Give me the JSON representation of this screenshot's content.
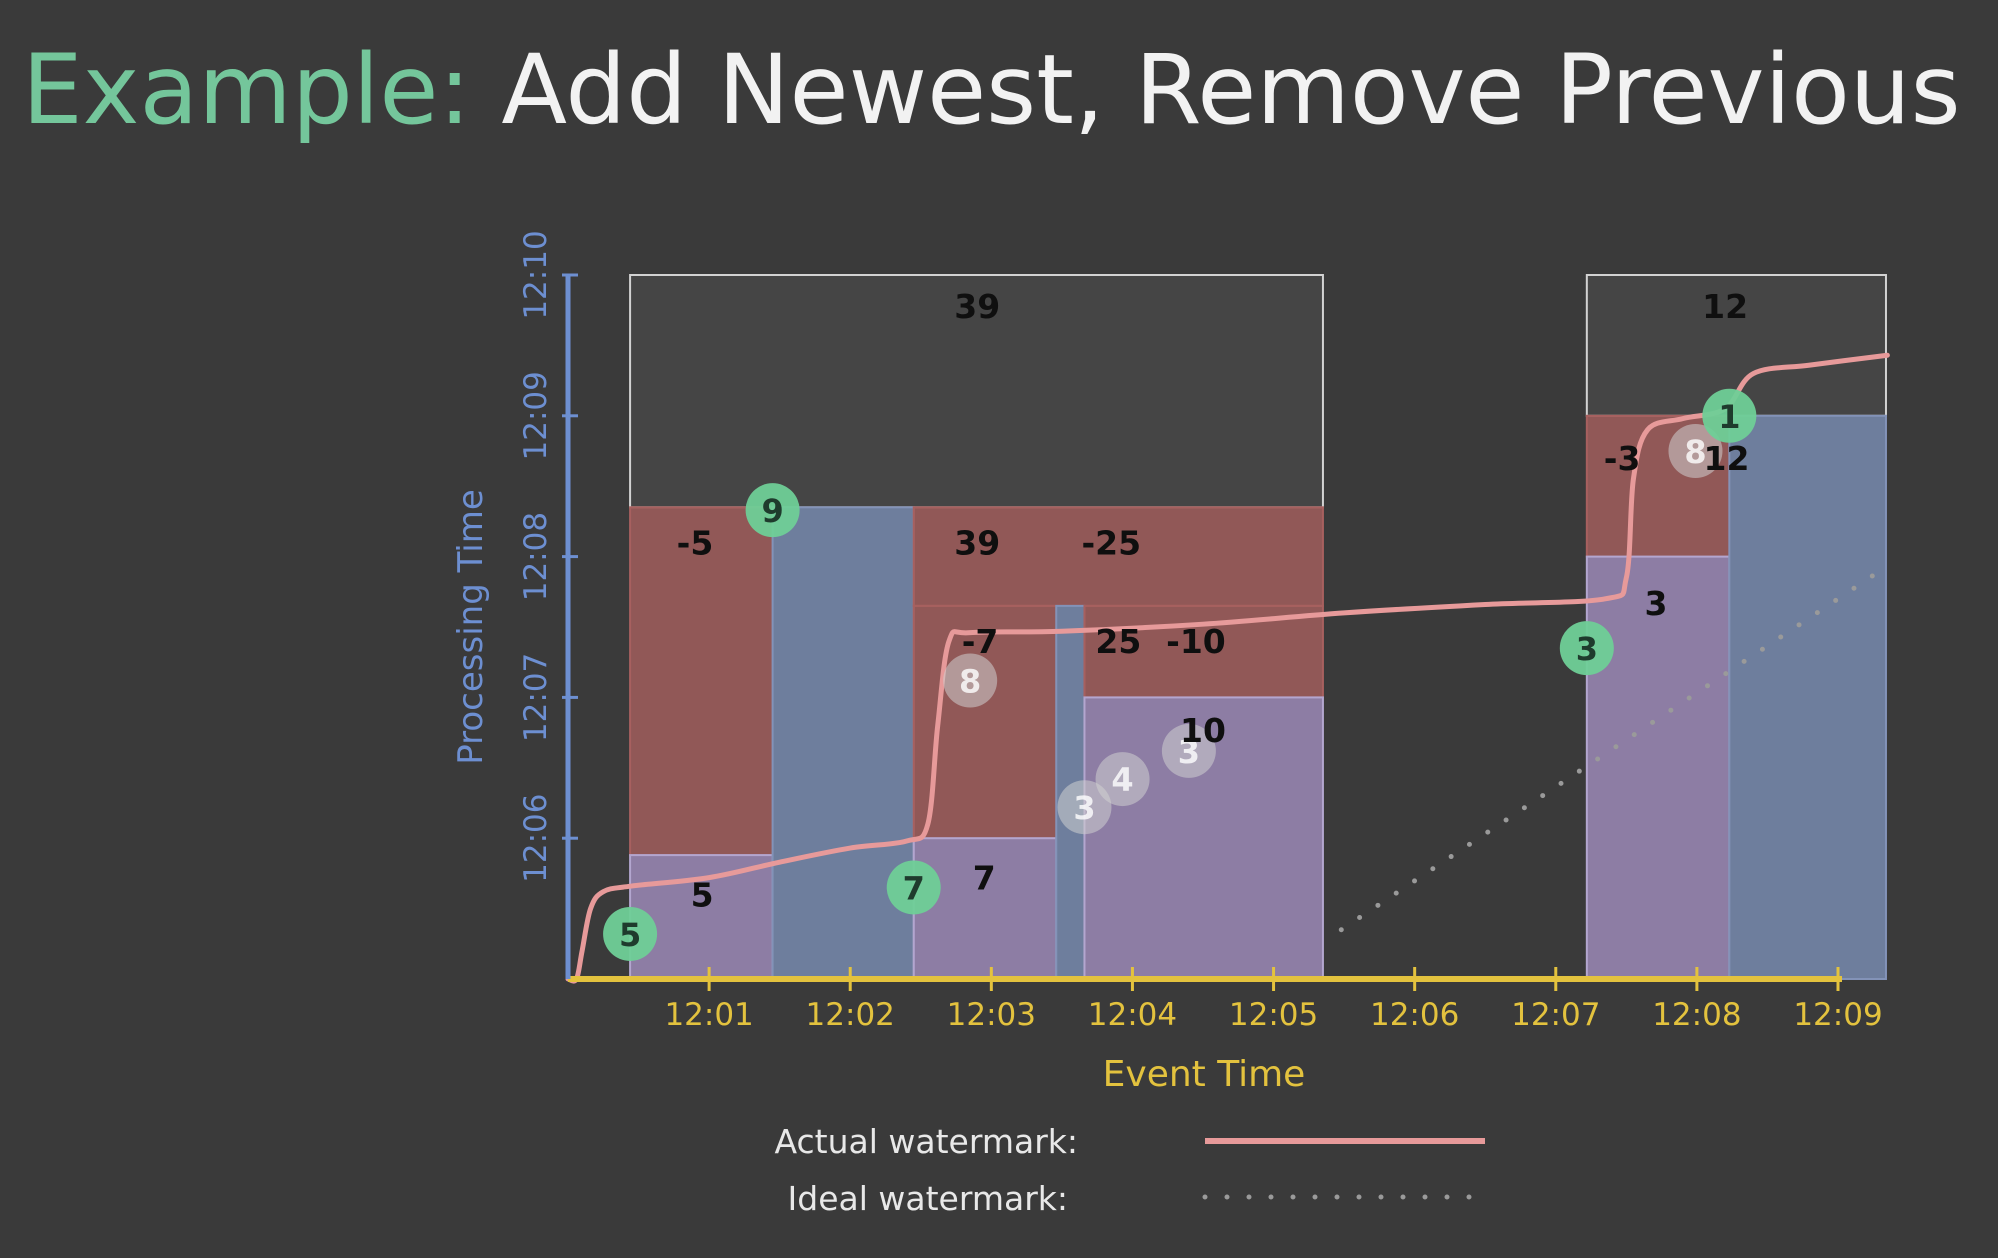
{
  "slide": {
    "title_lead": "Example:",
    "title_rest": "Add Newest, Remove Previous"
  },
  "chart_data": {
    "type": "timeline-diagram",
    "xlabel": "Event Time",
    "ylabel": "Processing Time",
    "x_ticks": [
      "12:01",
      "12:02",
      "12:03",
      "12:04",
      "12:05",
      "12:06",
      "12:07",
      "12:08",
      "12:09"
    ],
    "y_ticks": [
      "12:06",
      "12:07",
      "12:08",
      "12:09",
      "12:10"
    ],
    "xlim": [
      12.0,
      21.0
    ],
    "ylim": [
      5.0,
      10.0
    ],
    "colors": {
      "axis_x": "#e3c23e",
      "axis_y": "#6d8fd1",
      "watermark": "#e79a9a",
      "ideal": "#9a9a9a",
      "pane_added": "#9c8ab7",
      "pane_retracted": "#a7605f",
      "pane_blue": "#6e7e9d",
      "pane_final": "#454545",
      "input_green": "#6fcf97",
      "input_grey": "#cfcfcf"
    },
    "panes": [
      {
        "x0": 12.44,
        "x1": 17.35,
        "y0": 8.35,
        "y1": 10.0,
        "kind": "final"
      },
      {
        "x0": 12.44,
        "x1": 13.45,
        "y0": 5.88,
        "y1": 8.35,
        "kind": "retracted"
      },
      {
        "x0": 12.44,
        "x1": 13.45,
        "y0": 5.0,
        "y1": 5.88,
        "kind": "added"
      },
      {
        "x0": 13.45,
        "x1": 14.45,
        "y0": 5.0,
        "y1": 8.35,
        "kind": "blue"
      },
      {
        "x0": 14.45,
        "x1": 17.35,
        "y0": 7.65,
        "y1": 8.35,
        "kind": "retracted"
      },
      {
        "x0": 14.45,
        "x1": 15.46,
        "y0": 6.0,
        "y1": 7.65,
        "kind": "retracted"
      },
      {
        "x0": 14.45,
        "x1": 15.46,
        "y0": 5.0,
        "y1": 6.0,
        "kind": "added"
      },
      {
        "x0": 15.46,
        "x1": 15.66,
        "y0": 5.0,
        "y1": 7.65,
        "kind": "blue"
      },
      {
        "x0": 15.66,
        "x1": 17.35,
        "y0": 7.0,
        "y1": 7.65,
        "kind": "retracted"
      },
      {
        "x0": 15.66,
        "x1": 17.35,
        "y0": 5.0,
        "y1": 7.0,
        "kind": "added"
      },
      {
        "x0": 19.22,
        "x1": 21.34,
        "y0": 9.0,
        "y1": 10.0,
        "kind": "final"
      },
      {
        "x0": 19.22,
        "x1": 20.23,
        "y0": 8.0,
        "y1": 9.0,
        "kind": "retracted"
      },
      {
        "x0": 19.22,
        "x1": 20.23,
        "y0": 5.0,
        "y1": 8.0,
        "kind": "added"
      },
      {
        "x0": 20.23,
        "x1": 21.34,
        "y0": 5.0,
        "y1": 9.0,
        "kind": "blue"
      }
    ],
    "watermark": {
      "name": "Actual watermark",
      "points": [
        [
          12.0,
          5.0
        ],
        [
          12.06,
          5.0
        ],
        [
          12.1,
          5.2
        ],
        [
          12.16,
          5.5
        ],
        [
          12.25,
          5.62
        ],
        [
          12.45,
          5.66
        ],
        [
          13.0,
          5.72
        ],
        [
          13.5,
          5.83
        ],
        [
          14.0,
          5.93
        ],
        [
          14.4,
          5.98
        ],
        [
          14.55,
          6.1
        ],
        [
          14.62,
          6.8
        ],
        [
          14.7,
          7.4
        ],
        [
          14.85,
          7.46
        ],
        [
          15.5,
          7.47
        ],
        [
          16.5,
          7.52
        ],
        [
          17.5,
          7.6
        ],
        [
          18.5,
          7.66
        ],
        [
          19.35,
          7.7
        ],
        [
          19.5,
          7.85
        ],
        [
          19.55,
          8.55
        ],
        [
          19.65,
          8.9
        ],
        [
          19.9,
          8.98
        ],
        [
          20.2,
          9.05
        ],
        [
          20.4,
          9.3
        ],
        [
          20.8,
          9.36
        ],
        [
          21.35,
          9.43
        ]
      ]
    },
    "ideal_watermark": {
      "name": "Ideal watermark",
      "points": [
        [
          17.48,
          5.35
        ],
        [
          21.3,
          7.9
        ]
      ]
    },
    "inputs": [
      {
        "value": "5",
        "x": 12.44,
        "y": 5.32,
        "state": "on_time"
      },
      {
        "value": "9",
        "x": 13.45,
        "y": 8.33,
        "state": "on_time"
      },
      {
        "value": "7",
        "x": 14.45,
        "y": 5.65,
        "state": "on_time"
      },
      {
        "value": "8",
        "x": 14.85,
        "y": 7.12,
        "state": "late"
      },
      {
        "value": "3",
        "x": 15.66,
        "y": 6.22,
        "state": "late"
      },
      {
        "value": "4",
        "x": 15.93,
        "y": 6.42,
        "state": "late"
      },
      {
        "value": "3",
        "x": 16.4,
        "y": 6.62,
        "state": "late"
      },
      {
        "value": "3",
        "x": 19.22,
        "y": 7.35,
        "state": "on_time"
      },
      {
        "value": "8",
        "x": 19.99,
        "y": 8.75,
        "state": "late"
      },
      {
        "value": "1",
        "x": 20.23,
        "y": 9.0,
        "state": "on_time"
      }
    ],
    "pane_values": [
      {
        "value": "39",
        "x": 14.9,
        "y": 9.78
      },
      {
        "value": "-5",
        "x": 12.9,
        "y": 8.1
      },
      {
        "value": "5",
        "x": 12.95,
        "y": 5.6
      },
      {
        "value": "39",
        "x": 14.9,
        "y": 8.1
      },
      {
        "value": "-25",
        "x": 15.85,
        "y": 8.1
      },
      {
        "value": "-7",
        "x": 14.92,
        "y": 7.4
      },
      {
        "value": "25",
        "x": 15.9,
        "y": 7.4
      },
      {
        "value": "-10",
        "x": 16.45,
        "y": 7.4
      },
      {
        "value": "7",
        "x": 14.95,
        "y": 5.72
      },
      {
        "value": "10",
        "x": 16.5,
        "y": 6.77
      },
      {
        "value": "12",
        "x": 20.2,
        "y": 9.78
      },
      {
        "value": "-3",
        "x": 19.47,
        "y": 8.7
      },
      {
        "value": "12",
        "x": 20.21,
        "y": 8.7
      },
      {
        "value": "3",
        "x": 19.71,
        "y": 7.67
      }
    ],
    "legend": [
      {
        "label": "Actual watermark:",
        "style": "solid"
      },
      {
        "label": "Ideal watermark:",
        "style": "dotted"
      }
    ],
    "legend_placement": "bottom-center"
  }
}
